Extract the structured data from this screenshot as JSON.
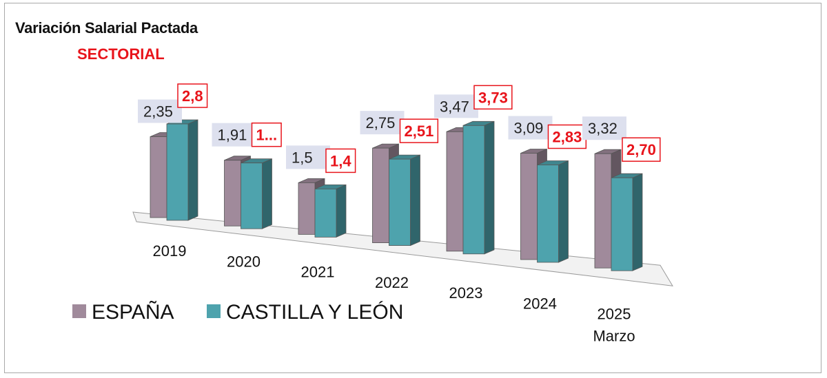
{
  "chart_data": {
    "type": "bar",
    "title": "Variación Salarial Pactada",
    "subtitle": "SECTORIAL",
    "categories": [
      {
        "line1": "2019",
        "line2": ""
      },
      {
        "line1": "2020",
        "line2": ""
      },
      {
        "line1": "2021",
        "line2": ""
      },
      {
        "line1": "2022",
        "line2": ""
      },
      {
        "line1": "2023",
        "line2": ""
      },
      {
        "line1": "2024",
        "line2": ""
      },
      {
        "line1": "2025",
        "line2": "Marzo"
      }
    ],
    "series": [
      {
        "name": "ESPAÑA",
        "color": "#a08a9b",
        "values": [
          2.35,
          1.91,
          1.5,
          2.75,
          3.47,
          3.09,
          3.32
        ],
        "labels": [
          "2,35",
          "1,91",
          "1,5",
          "2,75",
          "3,47",
          "3,09",
          "3,32"
        ]
      },
      {
        "name": "CASTILLA Y LEÓN",
        "color": "#4ea3ad",
        "values": [
          2.8,
          1.91,
          1.4,
          2.51,
          3.73,
          2.83,
          2.7
        ],
        "labels": [
          "2,8",
          "1...",
          "1,4",
          "2,51",
          "3,73",
          "2,83",
          "2,70"
        ]
      }
    ],
    "legend_position": "bottom-left",
    "grid": false,
    "projection": "3d-perspective"
  }
}
